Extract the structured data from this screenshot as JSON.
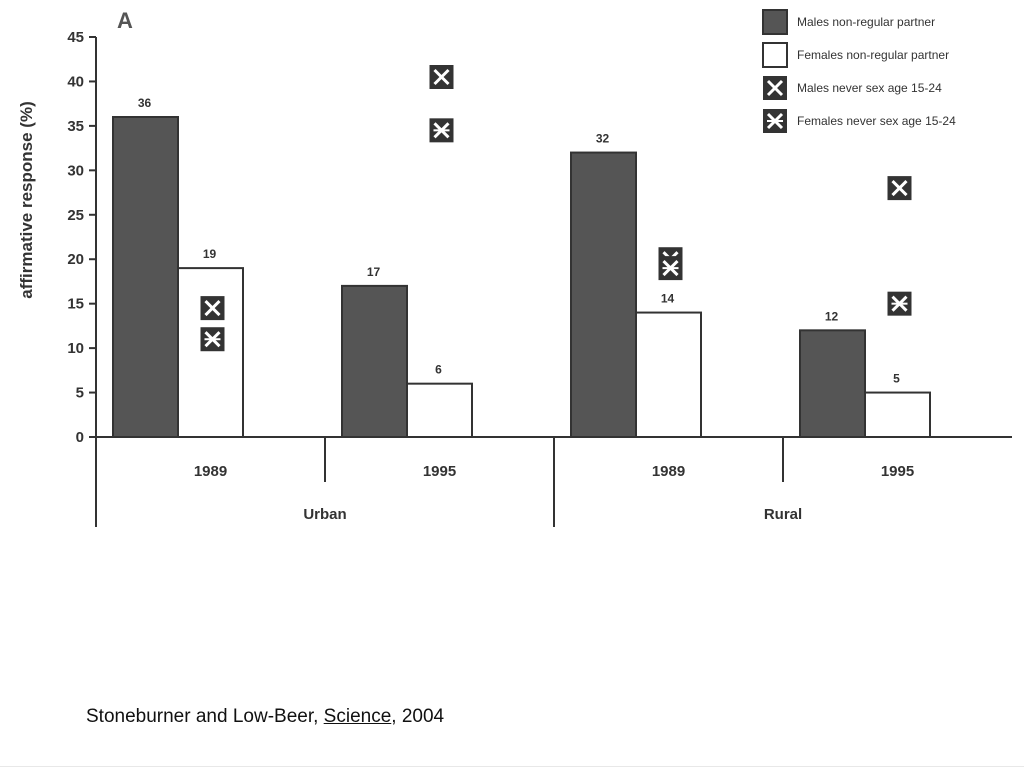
{
  "chart_data": {
    "type": "bar",
    "panel_label": "A",
    "ylabel": "affirmative response (%)",
    "ylim": [
      0,
      45
    ],
    "yticks": [
      0,
      5,
      10,
      15,
      20,
      25,
      30,
      35,
      40,
      45
    ],
    "grid": false,
    "legend_position": "top-right",
    "categories": [
      "1989",
      "1995",
      "1989",
      "1995"
    ],
    "groups": [
      {
        "label": "Urban",
        "categories": [
          "1989",
          "1995"
        ]
      },
      {
        "label": "Rural",
        "categories": [
          "1989",
          "1995"
        ]
      }
    ],
    "series": [
      {
        "name": "Males non-regular partner",
        "kind": "bar",
        "color": "#555555",
        "values": [
          36,
          17,
          32,
          12
        ],
        "labels": [
          "36",
          "17",
          "32",
          "12"
        ]
      },
      {
        "name": "Females non-regular partner",
        "kind": "bar",
        "color": "#ffffff",
        "values": [
          19,
          6,
          14,
          5
        ],
        "labels": [
          "19",
          "6",
          "14",
          "5"
        ]
      },
      {
        "name": "Males never sex age 15-24",
        "kind": "marker",
        "marker": "x-box",
        "values": [
          14.5,
          40.5,
          20,
          28
        ]
      },
      {
        "name": "Females never sex age 15-24",
        "kind": "marker",
        "marker": "star-box",
        "values": [
          11,
          34.5,
          19,
          15
        ]
      }
    ]
  },
  "citation": {
    "authors": "Stoneburner and Low-Beer, ",
    "journal": "Science",
    "year": ", 2004"
  }
}
